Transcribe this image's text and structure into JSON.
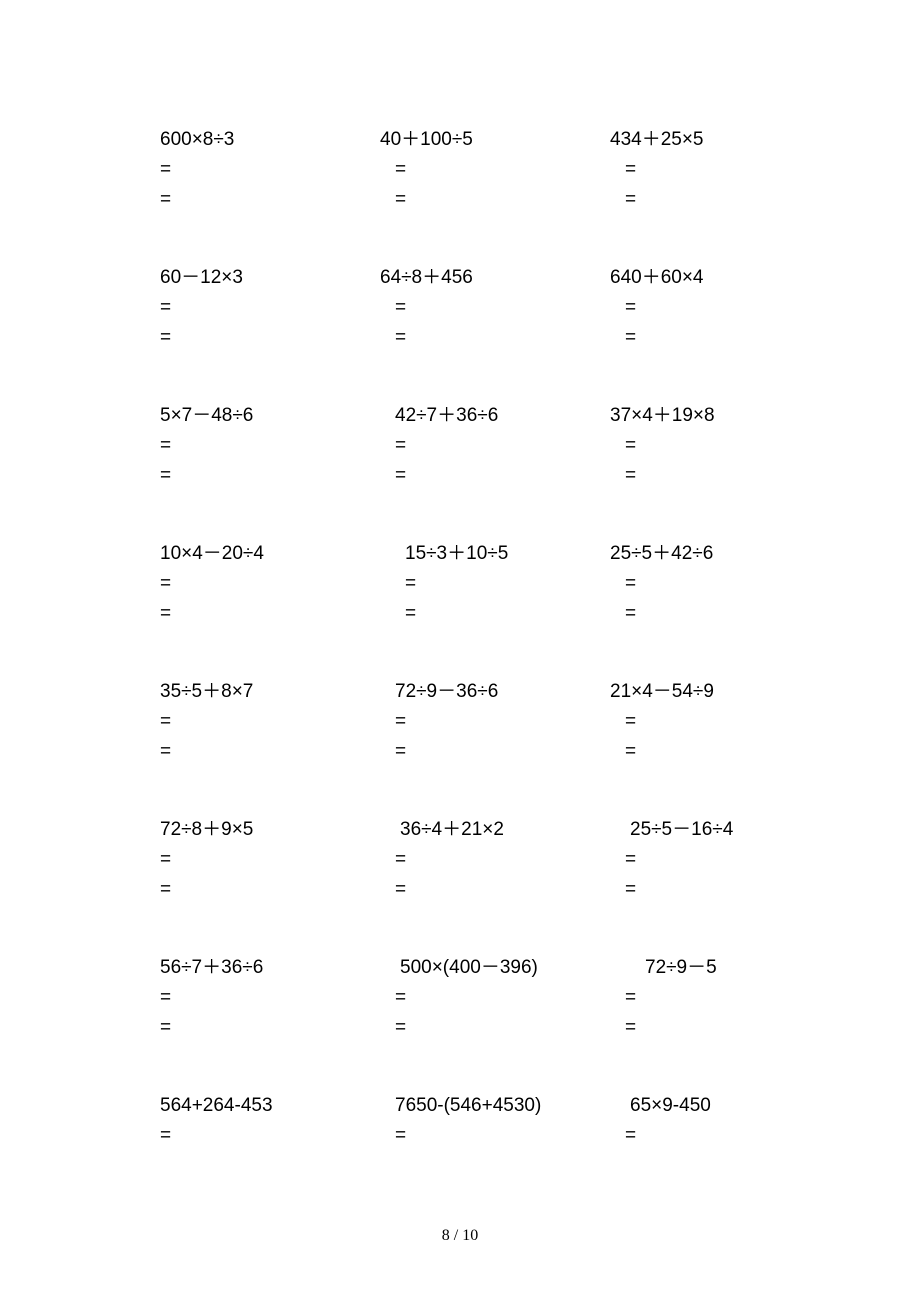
{
  "text_color": "#000000",
  "background_color": "#ffffff",
  "font_size": 19,
  "rows": [
    {
      "p1": {
        "expr": "600×8÷3",
        "eq1": "=",
        "eq2": "=",
        "indent": ""
      },
      "p2": {
        "expr": "40＋100÷5",
        "eq1": "=",
        "eq2": "=",
        "indent": "indent-1"
      },
      "p3": {
        "expr": "434＋25×5",
        "eq1": "=",
        "eq2": "=",
        "indent": "indent-1"
      }
    },
    {
      "p1": {
        "expr": "60－12×3",
        "eq1": "=",
        "eq2": "=",
        "indent": ""
      },
      "p2": {
        "expr": "64÷8＋456",
        "eq1": "=",
        "eq2": "=",
        "indent": "indent-1"
      },
      "p3": {
        "expr": "640＋60×4",
        "eq1": "=",
        "eq2": "=",
        "indent": "indent-1"
      }
    },
    {
      "p1": {
        "expr": "5×7－48÷6",
        "eq1": "=",
        "eq2": "=",
        "indent": ""
      },
      "p2": {
        "expr": "42÷7＋36÷6",
        "eq1": "=",
        "eq2": "=",
        "indent": "indent-1",
        "expr_indent": "indent-1"
      },
      "p3": {
        "expr": "37×4＋19×8",
        "eq1": "=",
        "eq2": "=",
        "indent": "indent-1"
      }
    },
    {
      "p1": {
        "expr": "10×4－20÷4",
        "eq1": "=",
        "eq2": "=",
        "indent": ""
      },
      "p2": {
        "expr": "15÷3＋10÷5",
        "eq1": "=",
        "eq2": "=",
        "indent": "indent-2",
        "expr_indent": "indent-2"
      },
      "p3": {
        "expr": "25÷5＋42÷6",
        "eq1": "=",
        "eq2": "=",
        "indent": "indent-1"
      }
    },
    {
      "p1": {
        "expr": "35÷5＋8×7",
        "eq1": "=",
        "eq2": "=",
        "indent": ""
      },
      "p2": {
        "expr": "72÷9－36÷6",
        "eq1": "=",
        "eq2": "=",
        "indent": "indent-1",
        "expr_indent": "indent-1"
      },
      "p3": {
        "expr": "21×4－54÷9",
        "eq1": "=",
        "eq2": "=",
        "indent": "indent-1"
      }
    },
    {
      "p1": {
        "expr": "72÷8＋9×5",
        "eq1": "=",
        "eq2": "=",
        "indent": ""
      },
      "p2": {
        "expr": "36÷4＋21×2",
        "eq1": "=",
        "eq2": "=",
        "indent": "indent-1",
        "expr_indent": "indent-4"
      },
      "p3": {
        "expr": "25÷5－16÷4",
        "eq1": "=",
        "eq2": "=",
        "indent": "indent-1",
        "expr_indent": "indent-4"
      }
    },
    {
      "p1": {
        "expr": "56÷7＋36÷6",
        "eq1": "=",
        "eq2": "=",
        "indent": ""
      },
      "p2": {
        "expr": "500×(400－396)",
        "eq1": "=",
        "eq2": "=",
        "indent": "indent-1",
        "expr_indent": "indent-4"
      },
      "p3": {
        "expr": "72÷9－5",
        "eq1": "=",
        "eq2": "=",
        "indent": "indent-1",
        "expr_indent": "indent-3"
      }
    },
    {
      "p1": {
        "expr": "564+264-453",
        "eq1": "=",
        "eq2": "",
        "indent": ""
      },
      "p2": {
        "expr": "7650-(546+4530)",
        "eq1": "=",
        "eq2": "",
        "indent": "indent-1",
        "expr_indent": "indent-1"
      },
      "p3": {
        "expr": "65×9-450",
        "eq1": "=",
        "eq2": "",
        "indent": "indent-1",
        "expr_indent": "indent-4"
      }
    }
  ],
  "page_number": "8 / 10"
}
